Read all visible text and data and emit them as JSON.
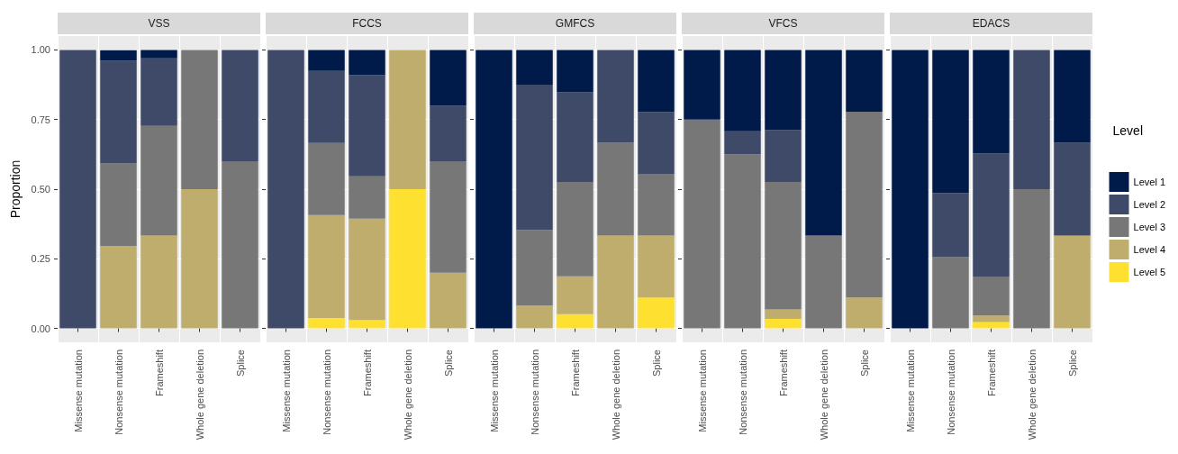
{
  "chart_data": [
    {
      "type": "bar",
      "title": "VSS",
      "ylabel": "Proportion",
      "categories": [
        "Missense mutation",
        "Nonsense mutation",
        "Frameshift",
        "Whole gene deletion",
        "Splice"
      ],
      "stacked": true,
      "ylim": [
        -0.05,
        1.05
      ],
      "yticks": [
        {
          "value": 0,
          "label": "0.00"
        },
        {
          "value": 0.25,
          "label": "0.25"
        },
        {
          "value": 0.5,
          "label": "0.50"
        },
        {
          "value": 0.75,
          "label": "0.75"
        },
        {
          "value": 1,
          "label": "1.00"
        }
      ],
      "grid": true,
      "series": [
        {
          "color": "#fde030",
          "values": [
            0,
            0,
            0,
            0,
            0
          ]
        },
        {
          "color": "#bfad6e",
          "values": [
            0,
            0.296,
            0.333,
            0.5,
            0
          ]
        },
        {
          "color": "#777777",
          "values": [
            0,
            0.296,
            0.394,
            0.5,
            0.6
          ]
        },
        {
          "color": "#3f4a68",
          "values": [
            1,
            0.37,
            0.243,
            0,
            0.4
          ]
        },
        {
          "color": "#001b4a",
          "values": [
            0,
            0.037,
            0.03,
            0,
            0
          ]
        }
      ]
    },
    {
      "type": "bar",
      "title": "FCCS",
      "categories": [
        "Missense mutation",
        "Nonsense mutation",
        "Frameshift",
        "Whole gene deletion",
        "Splice"
      ],
      "stacked": true,
      "ylim": [
        -0.05,
        1.05
      ],
      "yticks": [
        {
          "value": 0,
          "label": null
        },
        {
          "value": 0.25,
          "label": null
        },
        {
          "value": 0.5,
          "label": null
        },
        {
          "value": 0.75,
          "label": null
        },
        {
          "value": 1,
          "label": null
        }
      ],
      "grid": true,
      "tick_labels": "x",
      "series": [
        {
          "color": "#fde030",
          "values": [
            0,
            0.037,
            0.03,
            0.5,
            0
          ]
        },
        {
          "color": "#bfad6e",
          "values": [
            0,
            0.37,
            0.364,
            0.5,
            0.2
          ]
        },
        {
          "color": "#777777",
          "values": [
            0,
            0.259,
            0.152,
            0,
            0.4
          ]
        },
        {
          "color": "#3f4a68",
          "values": [
            1,
            0.259,
            0.363,
            0,
            0.2
          ]
        },
        {
          "color": "#001b4a",
          "values": [
            0,
            0.075,
            0.091,
            0,
            0.2
          ]
        }
      ]
    },
    {
      "type": "bar",
      "title": "GMFCS",
      "categories": [
        "Missense mutation",
        "Nonsense mutation",
        "Frameshift",
        "Whole gene deletion",
        "Splice"
      ],
      "stacked": true,
      "ylim": [
        -0.05,
        1.05
      ],
      "yticks": [
        {
          "value": 0,
          "label": null
        },
        {
          "value": 0.25,
          "label": null
        },
        {
          "value": 0.5,
          "label": null
        },
        {
          "value": 0.75,
          "label": null
        },
        {
          "value": 1,
          "label": null
        }
      ],
      "grid": true,
      "tick_labels": "x",
      "series": [
        {
          "color": "#fde030",
          "values": [
            0,
            0,
            0.051,
            0,
            0.111
          ]
        },
        {
          "color": "#bfad6e",
          "values": [
            0,
            0.083,
            0.136,
            0.333,
            0.222
          ]
        },
        {
          "color": "#777777",
          "values": [
            0,
            0.271,
            0.339,
            0.334,
            0.222
          ]
        },
        {
          "color": "#3f4a68",
          "values": [
            0,
            0.521,
            0.322,
            0.333,
            0.222
          ]
        },
        {
          "color": "#001b4a",
          "values": [
            1,
            0.125,
            0.152,
            0,
            0.223
          ]
        }
      ]
    },
    {
      "type": "bar",
      "title": "VFCS",
      "categories": [
        "Missense mutation",
        "Nonsense mutation",
        "Frameshift",
        "Whole gene deletion",
        "Splice"
      ],
      "stacked": true,
      "ylim": [
        -0.05,
        1.05
      ],
      "yticks": [
        {
          "value": 0,
          "label": null
        },
        {
          "value": 0.25,
          "label": null
        },
        {
          "value": 0.5,
          "label": null
        },
        {
          "value": 0.75,
          "label": null
        },
        {
          "value": 1,
          "label": null
        }
      ],
      "grid": true,
      "tick_labels": "x",
      "series": [
        {
          "color": "#fde030",
          "values": [
            0,
            0,
            0.034,
            0,
            0
          ]
        },
        {
          "color": "#bfad6e",
          "values": [
            0,
            0,
            0.034,
            0,
            0.111
          ]
        },
        {
          "color": "#777777",
          "values": [
            0.75,
            0.625,
            0.458,
            0.333,
            0.667
          ]
        },
        {
          "color": "#3f4a68",
          "values": [
            0,
            0.083,
            0.186,
            0,
            0
          ]
        },
        {
          "color": "#001b4a",
          "values": [
            0.25,
            0.292,
            0.288,
            0.667,
            0.222
          ]
        }
      ]
    },
    {
      "type": "bar",
      "title": "EDACS",
      "legend_title": "Level",
      "legend": "right",
      "categories": [
        "Missense mutation",
        "Nonsense mutation",
        "Frameshift",
        "Whole gene deletion",
        "Splice"
      ],
      "stacked": true,
      "ylim": [
        -0.05,
        1.05
      ],
      "yticks": [
        {
          "value": 0,
          "label": null
        },
        {
          "value": 0.25,
          "label": null
        },
        {
          "value": 0.5,
          "label": null
        },
        {
          "value": 0.75,
          "label": null
        },
        {
          "value": 1,
          "label": null
        }
      ],
      "grid": true,
      "tick_labels": "x",
      "series": [
        {
          "name": "Level 5",
          "color": "#fde030",
          "values": [
            0,
            0,
            0.023,
            0,
            0
          ]
        },
        {
          "name": "Level 4",
          "color": "#bfad6e",
          "values": [
            0,
            0,
            0.023,
            0,
            0.333
          ]
        },
        {
          "name": "Level 3",
          "color": "#777777",
          "values": [
            0,
            0.256,
            0.14,
            0.5,
            0
          ]
        },
        {
          "name": "Level 2",
          "color": "#3f4a68",
          "values": [
            0,
            0.23,
            0.442,
            0.5,
            0.334
          ]
        },
        {
          "name": "Level 1",
          "color": "#001b4a",
          "values": [
            1,
            0.514,
            0.372,
            0,
            0.333
          ]
        }
      ]
    }
  ]
}
